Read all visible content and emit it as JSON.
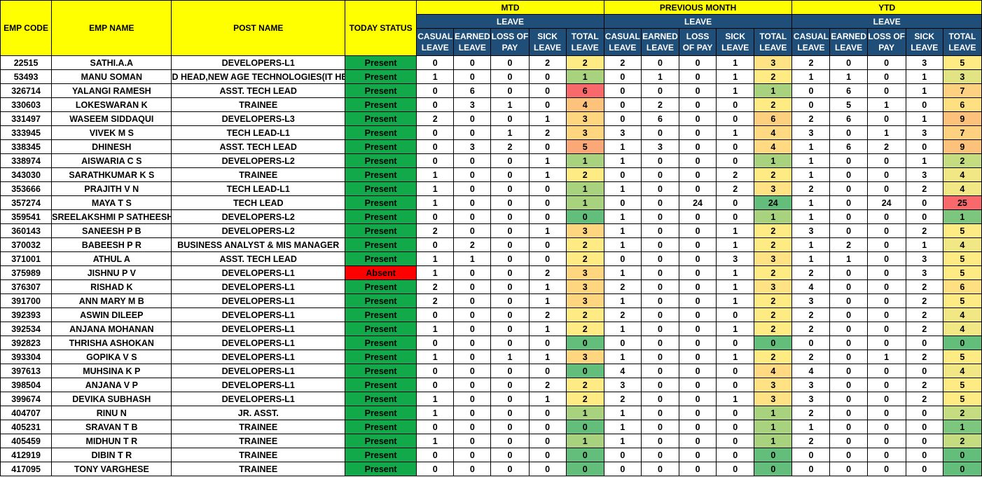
{
  "headers": {
    "emp_code": "EMP CODE",
    "emp_name": "EMP NAME",
    "post_name": "POST NAME",
    "today_status": "TODAY STATUS",
    "groups": [
      "MTD",
      "PREVIOUS MONTH",
      "YTD"
    ],
    "leave": "LEAVE",
    "leave_cols": [
      "CASUAL LEAVE",
      "EARNED LEAVE",
      "LOSS OF PAY",
      "SICK LEAVE",
      "TOTAL LEAVE"
    ]
  },
  "status_colors": {
    "Present": "#12a94a",
    "Absent": "#ff0000"
  },
  "rows": [
    {
      "code": "22515",
      "name": "SATHI.A.A",
      "post": "DEVELOPERS-L1",
      "status": "Present",
      "mtd": [
        0,
        0,
        0,
        2,
        2
      ],
      "prev": [
        2,
        0,
        0,
        1,
        3
      ],
      "ytd": [
        2,
        0,
        0,
        3,
        5
      ]
    },
    {
      "code": "53493",
      "name": "MANU SOMAN",
      "post": "D HEAD,NEW AGE TECHNOLOGIES(IT HEA",
      "status": "Present",
      "mtd": [
        1,
        0,
        0,
        0,
        1
      ],
      "prev": [
        0,
        1,
        0,
        1,
        2
      ],
      "ytd": [
        1,
        1,
        0,
        1,
        3
      ]
    },
    {
      "code": "326714",
      "name": "YALANGI RAMESH",
      "post": "ASST. TECH LEAD",
      "status": "Present",
      "mtd": [
        0,
        6,
        0,
        0,
        6
      ],
      "prev": [
        0,
        0,
        0,
        1,
        1
      ],
      "ytd": [
        0,
        6,
        0,
        1,
        7
      ]
    },
    {
      "code": "330603",
      "name": "LOKESWARAN K",
      "post": "TRAINEE",
      "status": "Present",
      "mtd": [
        0,
        3,
        1,
        0,
        4
      ],
      "prev": [
        0,
        2,
        0,
        0,
        2
      ],
      "ytd": [
        0,
        5,
        1,
        0,
        6
      ]
    },
    {
      "code": "331497",
      "name": "WASEEM SIDDAQUI",
      "post": "DEVELOPERS-L3",
      "status": "Present",
      "mtd": [
        2,
        0,
        0,
        1,
        3
      ],
      "prev": [
        0,
        6,
        0,
        0,
        6
      ],
      "ytd": [
        2,
        6,
        0,
        1,
        9
      ]
    },
    {
      "code": "333945",
      "name": "VIVEK M S",
      "post": "TECH LEAD-L1",
      "status": "Present",
      "mtd": [
        0,
        0,
        1,
        2,
        3
      ],
      "prev": [
        3,
        0,
        0,
        1,
        4
      ],
      "ytd": [
        3,
        0,
        1,
        3,
        7
      ]
    },
    {
      "code": "338345",
      "name": "DHINESH",
      "post": "ASST. TECH LEAD",
      "status": "Present",
      "mtd": [
        0,
        3,
        2,
        0,
        5
      ],
      "prev": [
        1,
        3,
        0,
        0,
        4
      ],
      "ytd": [
        1,
        6,
        2,
        0,
        9
      ]
    },
    {
      "code": "338974",
      "name": "AISWARIA C S",
      "post": "DEVELOPERS-L2",
      "status": "Present",
      "mtd": [
        0,
        0,
        0,
        1,
        1
      ],
      "prev": [
        1,
        0,
        0,
        0,
        1
      ],
      "ytd": [
        1,
        0,
        0,
        1,
        2
      ]
    },
    {
      "code": "343030",
      "name": "SARATHKUMAR K S",
      "post": "TRAINEE",
      "status": "Present",
      "mtd": [
        1,
        0,
        0,
        1,
        2
      ],
      "prev": [
        0,
        0,
        0,
        2,
        2
      ],
      "ytd": [
        1,
        0,
        0,
        3,
        4
      ]
    },
    {
      "code": "353666",
      "name": "PRAJITH  V N",
      "post": "TECH LEAD-L1",
      "status": "Present",
      "mtd": [
        1,
        0,
        0,
        0,
        1
      ],
      "prev": [
        1,
        0,
        0,
        2,
        3
      ],
      "ytd": [
        2,
        0,
        0,
        2,
        4
      ]
    },
    {
      "code": "357274",
      "name": "MAYA  T S",
      "post": "TECH LEAD",
      "status": "Present",
      "mtd": [
        1,
        0,
        0,
        0,
        1
      ],
      "prev": [
        0,
        0,
        24,
        0,
        24
      ],
      "ytd": [
        1,
        0,
        24,
        0,
        25
      ]
    },
    {
      "code": "359541",
      "name": "SREELAKSHMI P SATHEESH",
      "post": "DEVELOPERS-L2",
      "status": "Present",
      "mtd": [
        0,
        0,
        0,
        0,
        0
      ],
      "prev": [
        1,
        0,
        0,
        0,
        1
      ],
      "ytd": [
        1,
        0,
        0,
        0,
        1
      ]
    },
    {
      "code": "360143",
      "name": "SANEESH  P B",
      "post": "DEVELOPERS-L2",
      "status": "Present",
      "mtd": [
        2,
        0,
        0,
        1,
        3
      ],
      "prev": [
        1,
        0,
        0,
        1,
        2
      ],
      "ytd": [
        3,
        0,
        0,
        2,
        5
      ]
    },
    {
      "code": "370032",
      "name": "BABEESH  P R",
      "post": "BUSINESS ANALYST & MIS MANAGER",
      "status": "Present",
      "mtd": [
        0,
        2,
        0,
        0,
        2
      ],
      "prev": [
        1,
        0,
        0,
        1,
        2
      ],
      "ytd": [
        1,
        2,
        0,
        1,
        4
      ]
    },
    {
      "code": "371001",
      "name": "ATHUL  A",
      "post": "ASST. TECH LEAD",
      "status": "Present",
      "mtd": [
        1,
        1,
        0,
        0,
        2
      ],
      "prev": [
        0,
        0,
        0,
        3,
        3
      ],
      "ytd": [
        1,
        1,
        0,
        3,
        5
      ]
    },
    {
      "code": "375989",
      "name": "JISHNU  P V",
      "post": "DEVELOPERS-L1",
      "status": "Absent",
      "mtd": [
        1,
        0,
        0,
        2,
        3
      ],
      "prev": [
        1,
        0,
        0,
        1,
        2
      ],
      "ytd": [
        2,
        0,
        0,
        3,
        5
      ]
    },
    {
      "code": "376307",
      "name": "RISHAD  K",
      "post": "DEVELOPERS-L1",
      "status": "Present",
      "mtd": [
        2,
        0,
        0,
        1,
        3
      ],
      "prev": [
        2,
        0,
        0,
        1,
        3
      ],
      "ytd": [
        4,
        0,
        0,
        2,
        6
      ]
    },
    {
      "code": "391700",
      "name": "ANN MARY M B",
      "post": "DEVELOPERS-L1",
      "status": "Present",
      "mtd": [
        2,
        0,
        0,
        1,
        3
      ],
      "prev": [
        1,
        0,
        0,
        1,
        2
      ],
      "ytd": [
        3,
        0,
        0,
        2,
        5
      ]
    },
    {
      "code": "392393",
      "name": "ASWIN  DILEEP",
      "post": "DEVELOPERS-L1",
      "status": "Present",
      "mtd": [
        0,
        0,
        0,
        2,
        2
      ],
      "prev": [
        2,
        0,
        0,
        0,
        2
      ],
      "ytd": [
        2,
        0,
        0,
        2,
        4
      ]
    },
    {
      "code": "392534",
      "name": "ANJANA  MOHANAN",
      "post": "DEVELOPERS-L1",
      "status": "Present",
      "mtd": [
        1,
        0,
        0,
        1,
        2
      ],
      "prev": [
        1,
        0,
        0,
        1,
        2
      ],
      "ytd": [
        2,
        0,
        0,
        2,
        4
      ]
    },
    {
      "code": "392823",
      "name": "THRISHA  ASHOKAN",
      "post": "DEVELOPERS-L1",
      "status": "Present",
      "mtd": [
        0,
        0,
        0,
        0,
        0
      ],
      "prev": [
        0,
        0,
        0,
        0,
        0
      ],
      "ytd": [
        0,
        0,
        0,
        0,
        0
      ]
    },
    {
      "code": "393304",
      "name": "GOPIKA V S",
      "post": "DEVELOPERS-L1",
      "status": "Present",
      "mtd": [
        1,
        0,
        1,
        1,
        3
      ],
      "prev": [
        1,
        0,
        0,
        1,
        2
      ],
      "ytd": [
        2,
        0,
        1,
        2,
        5
      ]
    },
    {
      "code": "397613",
      "name": "MUHSINA  K P",
      "post": "DEVELOPERS-L1",
      "status": "Present",
      "mtd": [
        0,
        0,
        0,
        0,
        0
      ],
      "prev": [
        4,
        0,
        0,
        0,
        4
      ],
      "ytd": [
        4,
        0,
        0,
        0,
        4
      ]
    },
    {
      "code": "398504",
      "name": "ANJANA V P",
      "post": "DEVELOPERS-L1",
      "status": "Present",
      "mtd": [
        0,
        0,
        0,
        2,
        2
      ],
      "prev": [
        3,
        0,
        0,
        0,
        3
      ],
      "ytd": [
        3,
        0,
        0,
        2,
        5
      ]
    },
    {
      "code": "399674",
      "name": "DEVIKA  SUBHASH",
      "post": "DEVELOPERS-L1",
      "status": "Present",
      "mtd": [
        1,
        0,
        0,
        1,
        2
      ],
      "prev": [
        2,
        0,
        0,
        1,
        3
      ],
      "ytd": [
        3,
        0,
        0,
        2,
        5
      ]
    },
    {
      "code": "404707",
      "name": "RINU N",
      "post": "JR. ASST.",
      "status": "Present",
      "mtd": [
        1,
        0,
        0,
        0,
        1
      ],
      "prev": [
        1,
        0,
        0,
        0,
        1
      ],
      "ytd": [
        2,
        0,
        0,
        0,
        2
      ]
    },
    {
      "code": "405231",
      "name": "SRAVAN T B",
      "post": "TRAINEE",
      "status": "Present",
      "mtd": [
        0,
        0,
        0,
        0,
        0
      ],
      "prev": [
        1,
        0,
        0,
        0,
        1
      ],
      "ytd": [
        1,
        0,
        0,
        0,
        1
      ]
    },
    {
      "code": "405459",
      "name": "MIDHUN T R",
      "post": "TRAINEE",
      "status": "Present",
      "mtd": [
        1,
        0,
        0,
        0,
        1
      ],
      "prev": [
        1,
        0,
        0,
        0,
        1
      ],
      "ytd": [
        2,
        0,
        0,
        0,
        2
      ]
    },
    {
      "code": "412919",
      "name": "DIBIN T R",
      "post": "TRAINEE",
      "status": "Present",
      "mtd": [
        0,
        0,
        0,
        0,
        0
      ],
      "prev": [
        0,
        0,
        0,
        0,
        0
      ],
      "ytd": [
        0,
        0,
        0,
        0,
        0
      ]
    },
    {
      "code": "417095",
      "name": "TONY VARGHESE",
      "post": "TRAINEE",
      "status": "Present",
      "mtd": [
        0,
        0,
        0,
        0,
        0
      ],
      "prev": [
        0,
        0,
        0,
        0,
        0
      ],
      "ytd": [
        0,
        0,
        0,
        0,
        0
      ]
    }
  ]
}
